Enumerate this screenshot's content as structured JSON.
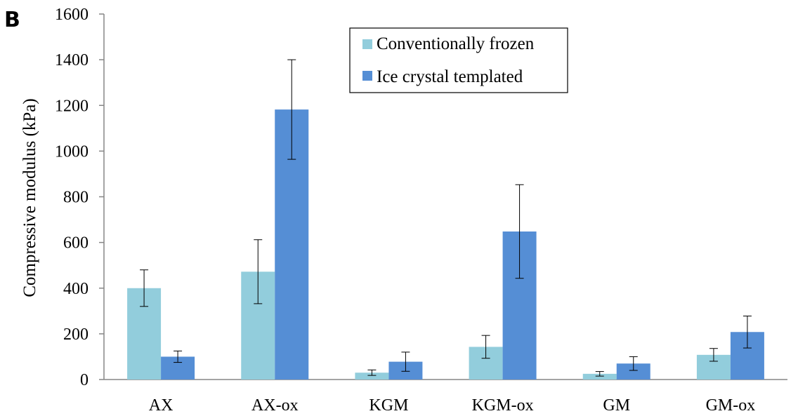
{
  "panel_label": "B",
  "chart_data": {
    "type": "bar",
    "categories": [
      "AX",
      "AX-ox",
      "KGM",
      "KGM-ox",
      "GM",
      "GM-ox"
    ],
    "series": [
      {
        "name": "Conventionally frozen",
        "color": "#92CDDC",
        "values": [
          400,
          472,
          30,
          143,
          25,
          108
        ],
        "error": [
          80,
          140,
          12,
          50,
          10,
          28
        ]
      },
      {
        "name": "Ice crystal templated",
        "color": "#558ED5",
        "values": [
          100,
          1182,
          78,
          648,
          70,
          208
        ],
        "error": [
          25,
          218,
          42,
          205,
          30,
          70
        ]
      }
    ],
    "ylabel": "Compressive modulus (kPa)",
    "xlabel": "",
    "ylim": [
      0,
      1600
    ],
    "yticks": [
      0,
      200,
      400,
      600,
      800,
      1000,
      1200,
      1400,
      1600
    ],
    "grid": false,
    "legend_position": "top-center"
  }
}
